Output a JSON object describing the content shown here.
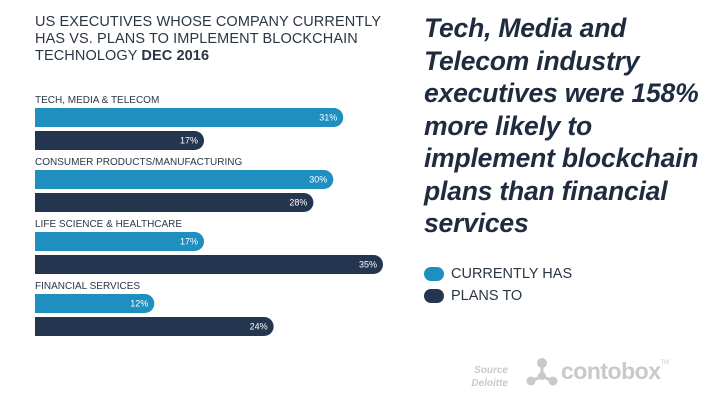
{
  "chart_data": {
    "type": "bar",
    "orientation": "horizontal",
    "title": "US EXECUTIVES WHOSE COMPANY CURRENTLY HAS VS. PLANS TO IMPLEMENT BLOCKCHAIN TECHNOLOGY",
    "title_date": "DEC 2016",
    "categories": [
      "TECH, MEDIA & TELECOM",
      "CONSUMER PRODUCTS/MANUFACTURING",
      "LIFE SCIENCE & HEALTHCARE",
      "FINANCIAL SERVICES"
    ],
    "series": [
      {
        "name": "CURRENTLY HAS",
        "values": [
          31,
          30,
          17,
          12
        ],
        "color": "#1f8fbf"
      },
      {
        "name": "PLANS TO",
        "values": [
          17,
          28,
          35,
          24
        ],
        "color": "#24354f"
      }
    ],
    "value_suffix": "%",
    "xlim": [
      0,
      35
    ],
    "grid": false,
    "legend_position": "right"
  },
  "headline": "Tech, Media and Telecom industry executives were 158% more likely to implement blockchain plans than financial services",
  "legend": [
    {
      "label": "CURRENTLY HAS",
      "color": "#1f8fbf"
    },
    {
      "label": "PLANS TO",
      "color": "#24354f"
    }
  ],
  "source": {
    "label": "Source",
    "name": "Deloitte"
  },
  "brand": {
    "name": "contobox",
    "tm": "TM"
  }
}
